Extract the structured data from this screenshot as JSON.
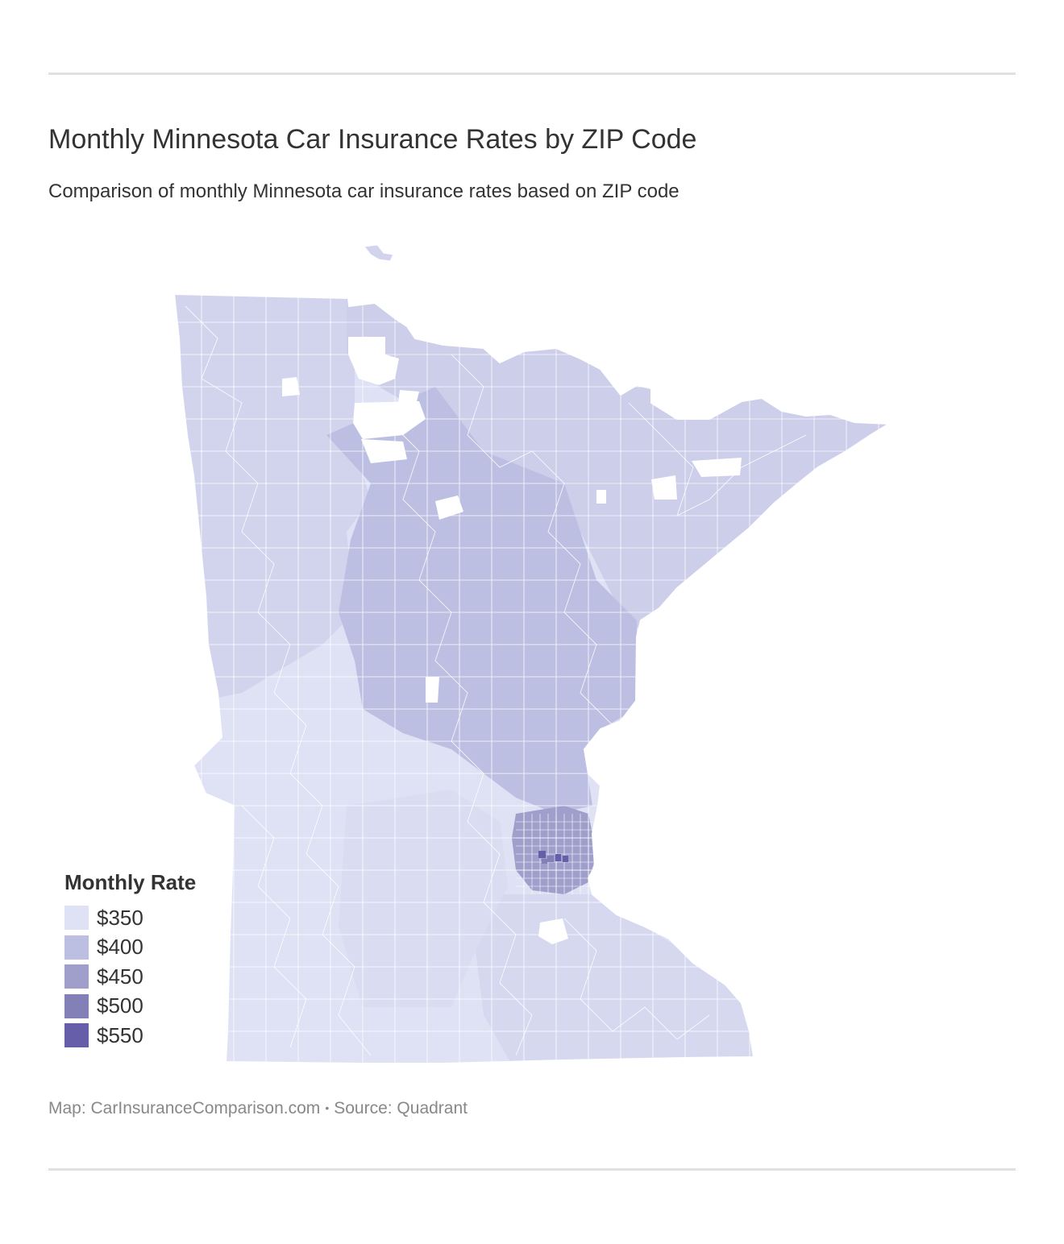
{
  "header": {
    "title": "Monthly Minnesota Car Insurance Rates by ZIP Code",
    "subtitle": "Comparison of monthly Minnesota car insurance rates based on ZIP code"
  },
  "legend": {
    "title": "Monthly Rate",
    "items": [
      {
        "label": "$350",
        "color": "#dfe1f4"
      },
      {
        "label": "$400",
        "color": "#bdbfe2"
      },
      {
        "label": "$450",
        "color": "#a09fcc"
      },
      {
        "label": "$500",
        "color": "#8280b7"
      },
      {
        "label": "$550",
        "color": "#675ea9"
      }
    ]
  },
  "footer": {
    "map_credit": "Map: CarInsuranceComparison.com",
    "separator": "•",
    "source": "Source: Quadrant"
  },
  "map": {
    "region": "Minnesota",
    "colors": {
      "south_west": "#dfe1f4",
      "north_west": "#d2d4ee",
      "north_east": "#ccceea",
      "central": "#bdbfe2",
      "metro": "#a09fcc",
      "metro_core": "#675ea9",
      "south_east": "#d6d8ef",
      "lakes": "#ffffff"
    }
  }
}
